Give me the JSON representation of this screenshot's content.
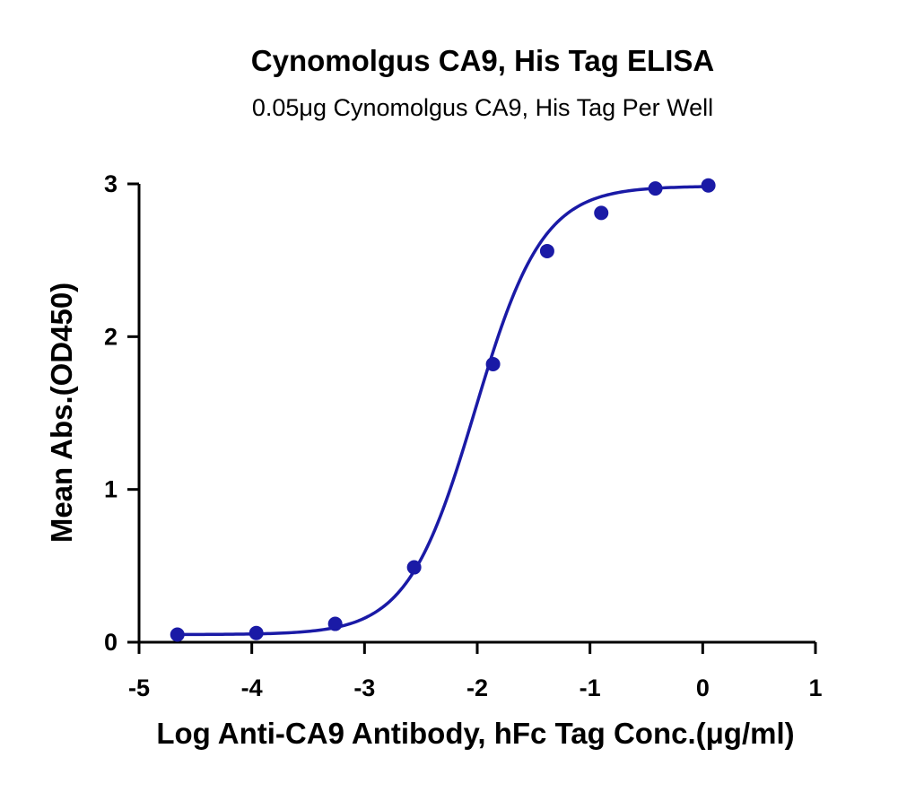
{
  "chart_data": {
    "type": "scatter",
    "title": "Cynomolgus CA9, His Tag ELISA",
    "subtitle": "0.05μg Cynomolgus CA9, His Tag Per Well",
    "xlabel": "Log Anti-CA9 Antibody, hFc Tag Conc.(μg/ml)",
    "ylabel": "Mean Abs.(OD450)",
    "xlim": [
      -5,
      1
    ],
    "ylim": [
      0,
      3
    ],
    "x_ticks": [
      -5,
      -4,
      -3,
      -2,
      -1,
      0,
      1
    ],
    "x_tick_labels": [
      "-5",
      "-4",
      "-3",
      "-2",
      "-1",
      "0",
      "1"
    ],
    "y_ticks": [
      0,
      1,
      2,
      3
    ],
    "y_tick_labels": [
      "0",
      "1",
      "2",
      "3"
    ],
    "grid": false,
    "series": [
      {
        "color": "#1a1aa6",
        "points": [
          {
            "x": -4.66,
            "y": 0.05
          },
          {
            "x": -3.96,
            "y": 0.06
          },
          {
            "x": -3.26,
            "y": 0.12
          },
          {
            "x": -2.56,
            "y": 0.49
          },
          {
            "x": -1.86,
            "y": 1.82
          },
          {
            "x": -1.38,
            "y": 2.56
          },
          {
            "x": -0.9,
            "y": 2.81
          },
          {
            "x": -0.42,
            "y": 2.97
          },
          {
            "x": 0.05,
            "y": 2.99
          }
        ],
        "fit": {
          "model": "4PL",
          "bottom": 0.05,
          "top": 2.985,
          "logEC50": -2.02,
          "hill": 1.45,
          "x_range": [
            -4.66,
            0.05
          ]
        }
      }
    ]
  }
}
